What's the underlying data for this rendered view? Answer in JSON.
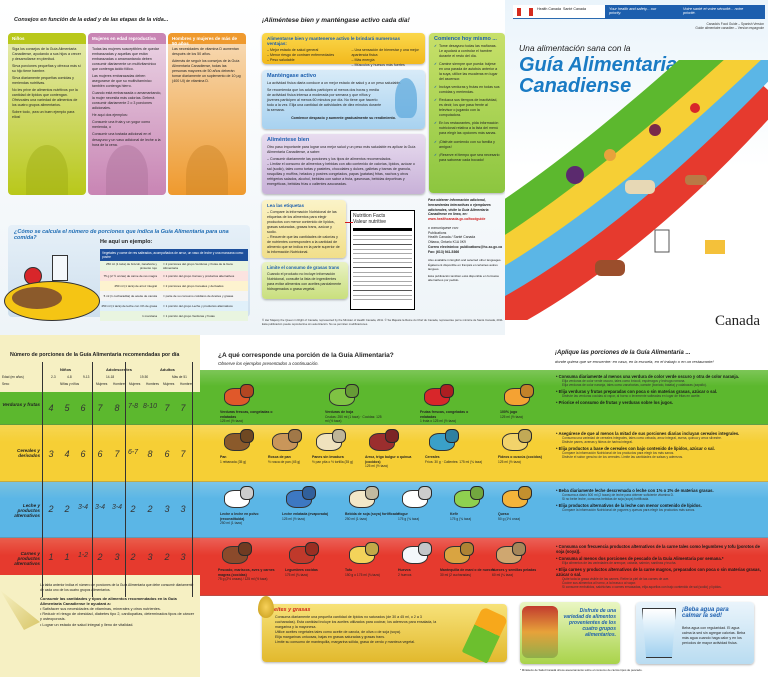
{
  "life_stages": {
    "title": "Consejos en función de la edad y de las etapas de la vida...",
    "columns": [
      {
        "heading": "Niños",
        "color": "#b9c81a",
        "paragraphs": [
          "Siga los consejos de la Guía Alimentaria Canadiense, ayudando a sus hijos a crecer y desarrollarse en plenitud.",
          "Sirva porciones pequeñas y ofrezca más si su hijo tiene hambre.",
          "Sirva diariamente pequeñas comidas y meriendas nutritivas.",
          "No les prive de alimentos nutritivos por la cantidad de lípidos que contengan. Ofrézcales una variedad de alimentos de los cuatro grupos alimentarios.",
          "Sobre todo, ¡sea un buen ejemplo para ellos!"
        ]
      },
      {
        "heading": "Mujeres en edad reproductiva",
        "color": "#c985b4",
        "paragraphs": [
          "Todas las mujeres susceptibles de quedar embarazadas y aquellas que están embarazadas o amamantando deben consumir diariamente un multivitamínico que contenga ácido fólico.",
          "Las mujeres embarazadas deben asegurarse de que su multivitamínico también contenga hierro.",
          "Cuando está embarazada o amamantando, la mujer necesita más calorías. Deberá consumir diariamente 2 o 3 porciones adicionales.",
          "He aquí dos ejemplos:",
          "Consumir una fruta y un yogur como merienda, o",
          "Consumir una tostada adicional en el desayuno y un vaso adicional de leche a la hora de la cena."
        ]
      },
      {
        "heading": "Hombres y mujeres de más de 50 años",
        "color": "#ef9a2e",
        "paragraphs": [
          "Las necesidades de vitamina D aumentan después de los 50 años.",
          "Además de seguir los consejos de la Guía Alimentaria Canadiense, todas las personas mayores de 50 años deberán tomar diariamente un suplemento de 10 µg (400 UI) de vitamina D."
        ]
      }
    ]
  },
  "meal_example": {
    "title": "¿Cómo se calcula el número de porciones que indica la Guía Alimentaria para una comida?",
    "subtitle": "He aquí un ejemplo:",
    "table_header": "Vegetales y carne de res salteados, acompañados de arroz, un vaso de leche y una manzana como postre",
    "rows": [
      [
        "250 ml (1 taza) de brócoli, zanahoria y pimiento rojo",
        "= 2 porciones del grupo Verduras y frutas de la Guía Alimentaria"
      ],
      [
        "75 g (2 ½ onzas) de carne de res magra",
        "= 1 porción del grupo Carnes y productos alternativos"
      ],
      [
        "250 ml (1 taza) de arroz integral",
        "= 2 porciones del grupo Cereales y derivados"
      ],
      [
        "5 ml (1 cucharadita) de aceite de canola",
        "= parte de su consumo cotidiano de Aceites y grasas"
      ],
      [
        "250 ml (1 taza) de leche con 1% de grasa",
        "= 1 porción del grupo Leche y productos alternativos"
      ],
      [
        "1 manzana",
        "= 1 porción del grupo Verduras y frutas"
      ]
    ]
  },
  "healthy": {
    "title": "¡Aliméntese bien y manténgase activo cada día!",
    "benefits": {
      "title": "Alimentarse bien y mantenerse activo le brindará numerosas ventajas:",
      "items": [
        "Mejor estado de salud general",
        "Menor riesgo de contraer enfermedades",
        "Peso saludable",
        "Una sensación de bienestar y una mejor apariencia física",
        "Más energía",
        "Músculos y huesos más fuertes"
      ]
    },
    "active": {
      "title": "Manténgase activo",
      "p1": "La actividad física diaria conduce a un mejor estado de salud y a un peso saludable.",
      "p2": "Se recomienda que los adultos participen al menos dos horas y media de actividad física intensa a moderada por semana y que niños y jóvenes participen al menos 60 minutos por día. No tiene que hacerlo todo a la vez. Elija una cantidad de actividades de diez minutos durante la semana.",
      "emphasis": "Comience despacio y aumente gradualmente su rendimiento."
    },
    "eat_well": {
      "title": "Aliméntese bien",
      "intro": "Otro paso importante para lograr una mejor salud y un peso más saludable es aplicar la Guía Alimentaria Canadiense, a saber:",
      "items": [
        "Consumir diariamente las porciones y los tipos de alimentos recomendados.",
        "Limitar el consumo de alimentos y bebidas con alto contenido de calorías, lípidos, azúcar o sal (sodio), tales como tortas y pasteles, chocolates y dulces, galletas y barras de granola, rosquillas y muffins, helados y postres congelados, papas (patatas) fritas, nachos y otros refrigerios salados, alcohol, bebidas con sabor a fruta, gaseosas, bebidas deportivas y energéticas, bebidas frías o calientes azucaradas."
      ]
    },
    "start": {
      "title": "Comience hoy mismo ...",
      "items": [
        "Tome desayuno todas las mañanas. Le ayudará a controlar el hambre durante el resto del día.",
        "Camine siempre que pueda: bájese en una parada de autobús anterior a la suya, utilice las escaleras en lugar del ascensor.",
        "Incluya verduras y frutas en todas sus comidas y meriendas.",
        "Reduzca sus tiempos de inactividad, es decir, los que pasa frente al televisor o jugando con la computadora.",
        "En los restaurantes, pida información nutricional relativa a la lista del menú para elegir las opciones más sanas.",
        "¡Disfrute comiendo con su familia y amigos!",
        "¡Reserve el tiempo que sea necesario para saborear cada bocado!"
      ]
    },
    "labels": {
      "title": "Lea las etiquetas",
      "items": [
        "Compare la información Nutricional de las etiquetas de los alimentos para elegir productos con menor contenido de lípidos, grasas saturadas, grasas trans, azúcar y sodio.",
        "Recuerde que las cantidades de calorías y de nutrientes corresponden a la cantidad de alimento que se indica en la parte superior de la información Nutricional."
      ],
      "facts_en": "Nutrition Facts",
      "facts_fr": "Valeur nutritive"
    },
    "trans": {
      "title": "Limite el consumo de grasas trans",
      "text": "Cuando el producto no incluye información Nutricional, consulte la lista de ingredientes para evitar alimentos con aceites parcialmente hidrogenados o grasa vegetal."
    },
    "contact": {
      "intro": "Para obtener información adicional, herramientas interactivas o ejemplares adicionales, visite la Guía Alimentaria Canadiense en línea, en:",
      "url": "www.healthcanada.gc.ca/foodguide",
      "or": "o comuníquese con:",
      "lines": [
        "Publications",
        "Health Canada / Santé Canada",
        "Ottawa, Ontario K1A 0K9"
      ],
      "email": "Correo electrónico: publications@hc-sc.gc.ca",
      "fax": "Fax: (613) 941-5366",
      "languages": "Also available in English and selected other languages. Également disponible en français et certaines autres langues.",
      "formats": "Esta publicación también está disponible en formatos alternativos por pedido."
    },
    "copyright": "© Her Majesty the Queen in Right of Canada, represented by the Minister of Health Canada, 2011. © Sa Majesté la Reine du Chef du Canada, représentée par le ministre de Santé Canada, 2011.",
    "reproduction": "Esta publicación puede reproducirse sin autorización. No se permiten modificaciones."
  },
  "cover": {
    "health_canada": "Health Canada",
    "sante_canada": "Santé Canada",
    "motto_en": "Your health and safety... our priority.",
    "motto_fr": "Votre santé et votre sécurité... notre priorité.",
    "version_en": "Canada's Food Guide – Spanish Version",
    "version_fr": "Guide alimentaire canadien – Version espagnole",
    "pretitle": "Una alimentación sana con la",
    "title1": "Guía Alimentaria",
    "title2": "Canadiense",
    "wordmark": "Canada",
    "title_color": "#1a7bc4"
  },
  "servings_table": {
    "title": "Número de porciones de la Guía Alimentaria recomendadas por día",
    "age_label": "Edad (en años)",
    "sex_label": "Sexo",
    "groups": [
      {
        "name": "Niños",
        "ages": [
          "2-3",
          "4-8",
          "9-13"
        ],
        "sex": "Niñas y niños"
      },
      {
        "name": "Adolescentes",
        "ages": [
          "14-18"
        ],
        "sex": [
          "Mujeres",
          "Hombres"
        ]
      },
      {
        "name": "Adultos",
        "ages": [
          "19-50",
          "Más de 51"
        ],
        "sex": [
          "Mujeres",
          "Hombres",
          "Mujeres",
          "Hombres"
        ]
      }
    ],
    "rows": [
      {
        "label": "Verduras y frutas",
        "values": [
          "4",
          "5",
          "6",
          "7",
          "8",
          "7-8",
          "8-10",
          "7",
          "7"
        ]
      },
      {
        "label": "Cereales y derivados",
        "values": [
          "3",
          "4",
          "6",
          "6",
          "7",
          "6-7",
          "8",
          "6",
          "7"
        ]
      },
      {
        "label": "Leche y productos alternativos",
        "values": [
          "2",
          "2",
          "3-4",
          "3-4",
          "3-4",
          "2",
          "2",
          "3",
          "3"
        ]
      },
      {
        "label": "Carnes y productos alternativos",
        "values": [
          "1",
          "1",
          "1-2",
          "2",
          "3",
          "2",
          "3",
          "2",
          "3"
        ]
      }
    ],
    "note": "La tabla anterior indica el número de porciones de la Guía Alimentaria que debe consumir diariamente de cada uno de los cuatro grupos alimentarios.",
    "benefits_title": "Consumir las cantidades y tipos de alimentos recomendados en la Guía Alimentaria Canadiense le ayudará a:",
    "benefits": [
      "Satisfacer sus necesidades de vitaminas, minerales y otros nutrientes.",
      "Reducir el riesgo de obesidad, diabetes tipo 2, cardiopatías, determinados tipos de cáncer y osteoporosis.",
      "Lograr un estado de salud integral y lleno de vitalidad."
    ]
  },
  "serving": {
    "title": "¿A qué corresponde una porción de la Guía Alimentaria?",
    "subtitle": "Observe los ejemplos presentados a continuación.",
    "bands": [
      {
        "color": "#5cb82e",
        "items": [
          {
            "name": "Verduras frescas, congeladas o enlatadas",
            "portion": "125 ml (½ taza)"
          },
          {
            "name": "Verduras de hoja",
            "portion": "Crudas: 250 ml (1 taza) · Cocidas: 125 ml (½ taza)"
          },
          {
            "name": "Frutas frescas, congeladas o enlatadas",
            "portion": "1 fruta o 125 ml (½ taza)"
          },
          {
            "name": "100% jugo",
            "portion": "125 ml (½ taza)"
          }
        ]
      },
      {
        "color": "#f6cf35",
        "items": [
          {
            "name": "Pan",
            "portion": "1 rebanada (35 g)"
          },
          {
            "name": "Rosca de pan",
            "portion": "½ rosca de pan (45 g)"
          },
          {
            "name": "Panes sin levadura",
            "portion": "½ pan pita o ½ tortilla (35 g)"
          },
          {
            "name": "Arroz, trigo bulgur o quinua (cocidos)",
            "portion": "125 ml (½ taza)"
          },
          {
            "name": "Cereales",
            "portion": "Fríos: 30 g · Calientes: 175 ml (¾ taza)"
          },
          {
            "name": "Fideos o cuscús (cocidos)",
            "portion": "125 ml (½ taza)"
          }
        ]
      },
      {
        "color": "#5bb6e6",
        "items": [
          {
            "name": "Leche o leche en polvo (reconstituida)",
            "portion": "250 ml (1 taza)"
          },
          {
            "name": "Leche enlatada (evaporada)",
            "portion": "125 ml (½ taza)"
          },
          {
            "name": "Bebida de soja (soya) fortificada",
            "portion": "250 ml (1 taza)"
          },
          {
            "name": "Yogur",
            "portion": "175 g (¾ taza)"
          },
          {
            "name": "Kefir",
            "portion": "175 g (¾ taza)"
          },
          {
            "name": "Queso",
            "portion": "50 g (1½ onza)"
          }
        ]
      },
      {
        "color": "#e63a2e",
        "items": [
          {
            "name": "Pescado, mariscos, aves y carnes magras (cocidas)",
            "portion": "75 g (2½ onzas) / 125 ml (½ taza)"
          },
          {
            "name": "Legumbres cocidas",
            "portion": "175 ml (¾ taza)"
          },
          {
            "name": "Tofu",
            "portion": "150 g o 175 ml (¾ taza)"
          },
          {
            "name": "Huevos",
            "portion": "2 huevos"
          },
          {
            "name": "Mantequilla de maní o de nueces",
            "portion": "30 ml (2 cucharadas)"
          },
          {
            "name": "Nueces y semillas peladas",
            "portion": "60 ml (¼ taza)"
          }
        ]
      }
    ]
  },
  "oils": {
    "title": "Aceites y grasas",
    "items": [
      "Consuma diariamente una pequeña cantidad de lípidos no saturados (de 30 a 45 ml, o 2 a 3 cucharadas). Esta cantidad incluye los aceites utilizados para cocinar, los aderezos para ensalada, la margarina y la mayonesa.",
      "Utilice aceites vegetales tales como aceite de canola, de oliva o de soja (soya).",
      "Elija margarinas untuosas, bajas en grasas saturadas y grasas trans.",
      "Limite su consumo de mantequilla, margarina sólida, grasa de cerdo y manteca vegetal."
    ]
  },
  "variety": "Disfrute de una variedad de alimentos provenientes de los cuatro grupos alimentarios.",
  "water": {
    "title": "¡Beba agua para calmar la sed!",
    "text": "Beba agua con regularidad. El agua calma la sed sin agregar calorías. Beba más agua cuando haga calor y en los períodos de mayor actividad física."
  },
  "apply": {
    "title": "¡Aplique las porciones de la Guía Alimentaria ...",
    "subtitle": "donde quiera que se encuentre: en casa, en la escuela, en el trabajo o en un restaurante!",
    "bands": [
      {
        "points": [
          {
            "text": "Consuma diariamente al menos una verdura de color verde oscuro y otra de color naranja.",
            "details": [
              "Elija verduras de color verde oscuro, tales como brócoli, espárragos y lechuga romana.",
              "Elija verduras de color naranja, tales como zanahorias, camote (boniato, batata) y calabazas (zapallo)."
            ]
          },
          {
            "text": "Elija verduras y frutas preparadas con poca o sin materias grasas, azúcar o sal.",
            "details": [
              "Disfrute las verduras cocidas al vapor, al horno o levemente salteadas en lugar de fritas en aceite."
            ]
          },
          {
            "text": "Priorice el consumo de frutas y verduras sobre los jugos.",
            "details": []
          }
        ]
      },
      {
        "points": [
          {
            "text": "Asegúrese de que al menos la mitad de sus porciones diarias incluyan cereales integrales.",
            "details": [
              "Consuma una variedad de cereales integrales, tales como cebada, arroz integral, avena, quinua y arroz silvestre.",
              "Disfrute panes, avenas y fideos de harina integral."
            ]
          },
          {
            "text": "Elija productos a base de cereales con bajo contenido de lípidos, azúcar o sal.",
            "details": [
              "Compare la información Nutricional de los productos para elegir los más sanos.",
              "Disfrute el sabor genuino de los cereales. Limite las cantidades de salsas y aderezos."
            ]
          }
        ]
      },
      {
        "points": [
          {
            "text": "Beba diariamente leche descremada o leche con 1% o 2% de materias grasas.",
            "details": [
              "Consuma a diario 500 ml (2 tazas) de leche para obtener suficiente vitamina D.",
              "Si no bebe leche, consuma bebidas de soja (soya) fortificada."
            ]
          },
          {
            "text": "Elija productos alternativos de la leche con menor contenido de lípidos.",
            "details": [
              "Compare la información Nutricional de yogures y quesos para elegir los productos más sanos."
            ]
          }
        ]
      },
      {
        "points": [
          {
            "text": "Consuma con frecuencia productos alternativos de la carne tales como legumbres y tofu (porotos de soja (soya)).",
            "details": []
          },
          {
            "text": "Consuma al menos dos porciones de pescado de la Guía Alimentaria por semana.*",
            "details": [
              "Elija alimentos de las variedades de arenque, caballa, salmón, sardinas y trucha."
            ]
          },
          {
            "text": "Elija carnes y productos alternativos de la carne magros, preparados con poca o sin materias grasas, azúcar o sal.",
            "details": [
              "Quite toda la grasa visible de las carnes. Retire la piel de las carnes de ave.",
              "Cocine sus alimentos al horno, a la brasa o al vapor.",
              "Si consume embutidos, salchichas o carnes envasadas, elija aquellos con bajo contenido de sal (sodio) y lípidos."
            ]
          }
        ]
      }
    ],
    "footnote": "* Ministerio de Salud Canadá ofrece asesoramiento sobre el consumo de ciertos tipos de pescado."
  }
}
